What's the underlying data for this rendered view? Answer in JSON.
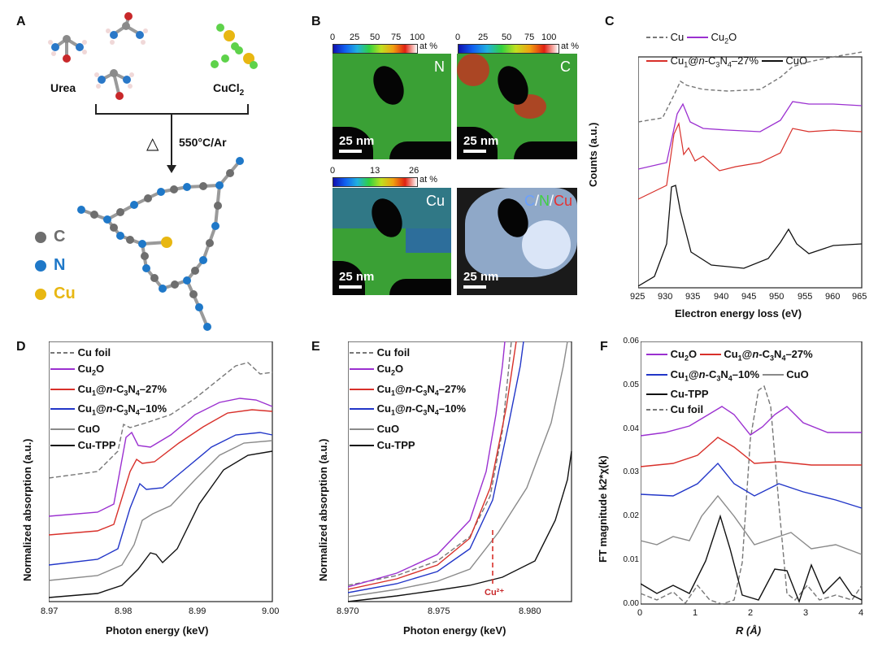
{
  "panelA": {
    "label": "A",
    "urea": "Urea",
    "cucl2_main": "CuCl",
    "cucl2_sub": "2",
    "condition": "550°C/Ar",
    "delta": "△",
    "legend": [
      "C",
      "N",
      "Cu"
    ]
  },
  "panelB": {
    "label": "B",
    "cb1": {
      "ticks": [
        "0",
        "25",
        "50",
        "75",
        "100"
      ],
      "unit": "at %"
    },
    "cb2": {
      "ticks": [
        "0",
        "25",
        "50",
        "75",
        "100"
      ],
      "unit": "at %"
    },
    "cb3": {
      "ticks": [
        "0",
        "13",
        "26"
      ],
      "unit": "at %"
    },
    "maps": [
      "N",
      "C",
      "Cu"
    ],
    "merge": {
      "c": "C",
      "s1": "/",
      "n": "N",
      "s2": "/",
      "cu": "Cu"
    },
    "scalebar": "25 nm"
  },
  "panelC": {
    "label": "C",
    "ylabel": "Counts (a.u.)",
    "xlabel": "Electron energy loss (eV)",
    "xticks": [
      "925",
      "930",
      "935",
      "940",
      "945",
      "950",
      "955",
      "960",
      "965"
    ],
    "legend": {
      "cu": "Cu",
      "cu2o": "Cu",
      "cu1": "Cu",
      "cuo": "CuO"
    }
  },
  "panelD": {
    "label": "D",
    "ylabel": "Normalized absorption (a.u.)",
    "xlabel": "Photon energy (keV)",
    "xticks": [
      "8.97",
      "8.98",
      "8.99",
      "9.00"
    ],
    "legend": [
      "Cu foil",
      "Cu2O",
      "Cu1@n-C3N4–27%",
      "Cu1@n-C3N4–10%",
      "CuO",
      "Cu-TPP"
    ]
  },
  "panelE": {
    "label": "E",
    "ylabel": "Normalized absorption (a.u.)",
    "xlabel": "Photon energy (keV)",
    "xticks": [
      "8.970",
      "8.975",
      "8.980"
    ],
    "legend": [
      "Cu foil",
      "Cu2O",
      "Cu1@n-C3N4–27%",
      "Cu1@n-C3N4–10%",
      "CuO",
      "Cu-TPP"
    ],
    "annotation": "Cu²⁺"
  },
  "panelF": {
    "label": "F",
    "ylabel": "FT magnitude k2*χ(k)",
    "xlabel": "R (Å)",
    "xticks": [
      "0",
      "1",
      "2",
      "3",
      "4"
    ],
    "yticks": [
      "0.00",
      "0.01",
      "0.02",
      "0.03",
      "0.04",
      "0.05",
      "0.06"
    ],
    "legend": [
      "Cu2O",
      "Cu1@n-C3N4–27%",
      "Cu1@n-C3N4–10%",
      "CuO",
      "Cu-TPP",
      "Cu foil"
    ]
  },
  "colors": {
    "cu_foil": "#777777",
    "cu2o": "#9b30d0",
    "cu1_27": "#d8302a",
    "cu1_10": "#2236c8",
    "cuo": "#8a8a8a",
    "cutpp": "#111111",
    "carbon": "#6e6e6e",
    "nitrogen": "#1f78c8",
    "copper": "#e8b712",
    "chlorine": "#5ed24a"
  }
}
